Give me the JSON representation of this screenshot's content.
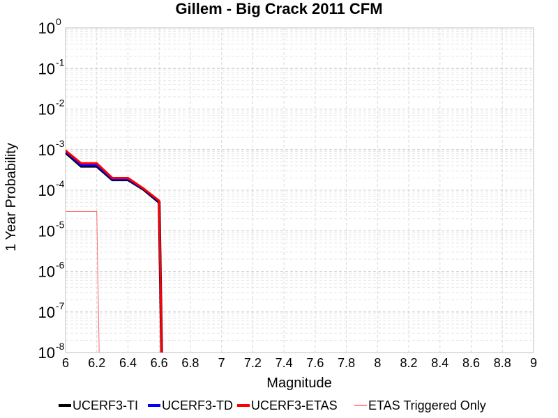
{
  "chart_data": {
    "type": "line",
    "title": "Gillem - Big Crack 2011 CFM",
    "xlabel": "Magnitude",
    "ylabel": "1 Year Probability",
    "xlim": [
      6,
      9
    ],
    "ylim": [
      1e-08,
      1
    ],
    "yscale": "log",
    "grid": true,
    "legend_position": "bottom",
    "x_ticks": [
      "6",
      "6.2",
      "6.4",
      "6.6",
      "6.8",
      "7",
      "7.2",
      "7.4",
      "7.6",
      "7.8",
      "8",
      "8.2",
      "8.4",
      "8.6",
      "8.8",
      "9"
    ],
    "y_ticks": [
      {
        "base": "10",
        "exp": "0",
        "value": 1
      },
      {
        "base": "10",
        "exp": "-1",
        "value": 0.1
      },
      {
        "base": "10",
        "exp": "-2",
        "value": 0.01
      },
      {
        "base": "10",
        "exp": "-3",
        "value": 0.001
      },
      {
        "base": "10",
        "exp": "-4",
        "value": 0.0001
      },
      {
        "base": "10",
        "exp": "-5",
        "value": 1e-05
      },
      {
        "base": "10",
        "exp": "-6",
        "value": 1e-06
      },
      {
        "base": "10",
        "exp": "-7",
        "value": 1e-07
      },
      {
        "base": "10",
        "exp": "-8",
        "value": 1e-08
      }
    ],
    "series": [
      {
        "name": "UCERF3-TI",
        "color": "#000000",
        "x": [
          6.0,
          6.1,
          6.2,
          6.3,
          6.4,
          6.5,
          6.6,
          6.62
        ],
        "y": [
          0.00085,
          0.00039,
          0.00039,
          0.00018,
          0.00018,
          0.000105,
          5e-05,
          1e-09
        ]
      },
      {
        "name": "UCERF3-TD",
        "color": "#0000ff",
        "x": [
          6.0,
          6.1,
          6.2,
          6.3,
          6.4,
          6.5,
          6.6,
          6.62
        ],
        "y": [
          0.0009,
          0.00041,
          0.00041,
          0.000185,
          0.000185,
          0.000108,
          5.2e-05,
          1e-09
        ]
      },
      {
        "name": "UCERF3-ETAS",
        "color": "#ff0000",
        "x": [
          6.0,
          6.1,
          6.2,
          6.3,
          6.4,
          6.5,
          6.6,
          6.62
        ],
        "y": [
          0.00095,
          0.00046,
          0.00046,
          0.0002,
          0.0002,
          0.00011,
          5.5e-05,
          1e-09
        ]
      },
      {
        "name": "ETAS Triggered Only",
        "color": "#ff6666",
        "x": [
          6.0,
          6.2,
          6.22
        ],
        "y": [
          3e-05,
          3e-05,
          1e-09
        ]
      }
    ]
  }
}
